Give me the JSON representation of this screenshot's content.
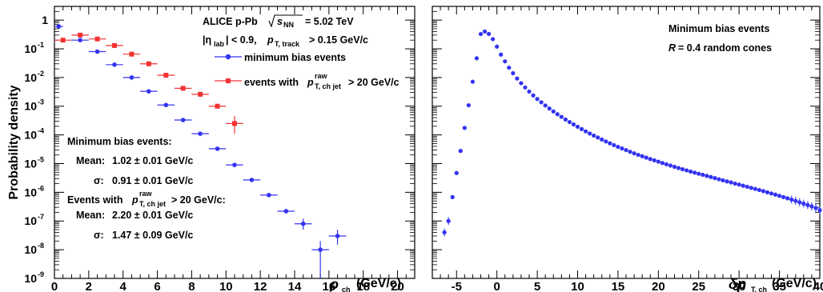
{
  "colors": {
    "red": "#f23333",
    "blue": "#3333f2",
    "frame": "#000000"
  },
  "left_panel": {
    "ylabel": "Probability density",
    "xlabel_sym": "ρ",
    "xlabel_sub": "ch",
    "xlabel_unit": "(GeV/c)",
    "title_line1_a": "ALICE p-Pb",
    "title_line1_sqrt": "s",
    "title_line1_sub": "NN",
    "title_line1_b": "= 5.02 TeV",
    "title_line2_a": "|η",
    "title_line2_sub1": "lab",
    "title_line2_b": "| < 0.9,",
    "title_line2_p": "p",
    "title_line2_sub2": "T, track",
    "title_line2_c": "> 0.15 GeV/c",
    "legend_blue": "minimum bias events",
    "legend_red_a": "events with",
    "legend_red_p": "p",
    "legend_red_sup": "raw",
    "legend_red_sub": "T, ch jet",
    "legend_red_b": "> 20 GeV/c",
    "mb_header": "Minimum bias events:",
    "mb_mean_label": "Mean:",
    "mb_mean_value": "1.02 ± 0.01 GeV/c",
    "mb_sigma_label": "σ:",
    "mb_sigma_value": "0.91 ± 0.01 GeV/c",
    "ev_header_a": "Events with",
    "ev_header_p": "p",
    "ev_header_sup": "raw",
    "ev_header_sub": "T, ch jet",
    "ev_header_b": "> 20 GeV/c:",
    "ev_mean_label": "Mean:",
    "ev_mean_value": "2.20 ± 0.01 GeV/c",
    "ev_sigma_label": "σ:",
    "ev_sigma_value": "1.47 ± 0.09 GeV/c"
  },
  "right_panel": {
    "xlabel_sym": "δp",
    "xlabel_sub": "T, ch",
    "xlabel_unit": "(GeV/c)",
    "legend_line1": "Minimum bias events",
    "legend_line2_a": "R",
    "legend_line2_b": "= 0.4 random cones"
  },
  "chart_data": [
    {
      "type": "scatter",
      "log_y": true,
      "xlim": [
        0,
        21
      ],
      "ylim": [
        1e-09,
        3
      ],
      "xticks": [
        "0",
        "2",
        "4",
        "6",
        "8",
        "10",
        "12",
        "14",
        "16",
        "18",
        "20"
      ],
      "yticks": [
        "10⁻⁹",
        "10⁻⁸",
        "10⁻⁷",
        "10⁻⁶",
        "10⁻⁵",
        "10⁻⁴",
        "10⁻³",
        "10⁻²",
        "10⁻¹",
        "1"
      ],
      "series": [
        {
          "name": "minimum bias events",
          "color": "#3333f2",
          "points": [
            {
              "x": 0.25,
              "y": 0.6,
              "xerr": 0.25
            },
            {
              "x": 1.5,
              "y": 0.2,
              "xerr": 0.5
            },
            {
              "x": 2.5,
              "y": 0.08,
              "xerr": 0.5
            },
            {
              "x": 3.5,
              "y": 0.028,
              "xerr": 0.5
            },
            {
              "x": 4.5,
              "y": 0.01,
              "xerr": 0.5
            },
            {
              "x": 5.5,
              "y": 0.0033,
              "xerr": 0.5
            },
            {
              "x": 6.5,
              "y": 0.0011,
              "xerr": 0.5
            },
            {
              "x": 7.5,
              "y": 0.00033,
              "xerr": 0.5
            },
            {
              "x": 8.5,
              "y": 0.00011,
              "xerr": 0.5
            },
            {
              "x": 9.5,
              "y": 3.3e-05,
              "xerr": 0.5
            },
            {
              "x": 10.5,
              "y": 9e-06,
              "xerr": 0.5
            },
            {
              "x": 11.5,
              "y": 2.7e-06,
              "xerr": 0.5
            },
            {
              "x": 12.5,
              "y": 8e-07,
              "xerr": 0.5
            },
            {
              "x": 13.5,
              "y": 2.2e-07,
              "xerr": 0.5
            },
            {
              "x": 14.5,
              "y": 8e-08,
              "xerr": 0.5,
              "ylo": 5e-08,
              "yhi": 1.2e-07
            },
            {
              "x": 15.5,
              "y": 1e-08,
              "xerr": 0.5,
              "ylo": 1e-09,
              "yhi": 2e-08
            },
            {
              "x": 16.5,
              "y": 3e-08,
              "xerr": 0.5,
              "ylo": 1.5e-08,
              "yhi": 5e-08
            }
          ]
        },
        {
          "name": "events with p_T,ch jet raw > 20 GeV/c",
          "color": "#f23333",
          "points": [
            {
              "x": 0.5,
              "y": 0.2,
              "xerr": 0.5
            },
            {
              "x": 1.5,
              "y": 0.3,
              "xerr": 0.5
            },
            {
              "x": 2.5,
              "y": 0.22,
              "xerr": 0.5
            },
            {
              "x": 3.5,
              "y": 0.13,
              "xerr": 0.5
            },
            {
              "x": 4.5,
              "y": 0.065,
              "xerr": 0.5
            },
            {
              "x": 5.5,
              "y": 0.03,
              "xerr": 0.5
            },
            {
              "x": 6.5,
              "y": 0.012,
              "xerr": 0.5
            },
            {
              "x": 7.5,
              "y": 0.0042,
              "xerr": 0.5
            },
            {
              "x": 8.5,
              "y": 0.0026,
              "xerr": 0.5
            },
            {
              "x": 9.5,
              "y": 0.001,
              "xerr": 0.5
            },
            {
              "x": 10.5,
              "y": 0.00025,
              "xerr": 0.5,
              "ylo": 0.00011,
              "yhi": 0.00045
            }
          ]
        }
      ]
    },
    {
      "type": "scatter",
      "log_y": true,
      "xlim": [
        -8,
        40
      ],
      "ylim": [
        1e-09,
        3
      ],
      "xticks": [
        "-5",
        "0",
        "5",
        "10",
        "15",
        "20",
        "25",
        "30",
        "35",
        "40"
      ],
      "series": [
        {
          "name": "Minimum bias events, R = 0.4 random cones",
          "color": "#3333f2",
          "xerr": 0.25,
          "x": [
            -6.5,
            -6.0,
            -5.5,
            -5.0,
            -4.5,
            -4.0,
            -3.5,
            -3.0,
            -2.5,
            -2.0,
            -1.5,
            -1.0,
            -0.5,
            0.0,
            0.5,
            1.0,
            1.5,
            2.0,
            2.5,
            3.0,
            3.5,
            4.0,
            4.5,
            5.0,
            5.5,
            6.0,
            6.5,
            7.0,
            7.5,
            8.0,
            8.5,
            9.0,
            9.5,
            10.0,
            10.5,
            11.0,
            11.5,
            12.0,
            12.5,
            13.0,
            13.5,
            14.0,
            14.5,
            15.0,
            15.5,
            16.0,
            16.5,
            17.0,
            17.5,
            18.0,
            18.5,
            19.0,
            19.5,
            20.0,
            20.5,
            21.0,
            21.5,
            22.0,
            22.5,
            23.0,
            23.5,
            24.0,
            24.5,
            25.0,
            25.5,
            26.0,
            26.5,
            27.0,
            27.5,
            28.0,
            28.5,
            29.0,
            29.5,
            30.0,
            30.5,
            31.0,
            31.5,
            32.0,
            32.5,
            33.0,
            33.5,
            34.0,
            34.5,
            35.0,
            35.5,
            36.0,
            36.5,
            37.0,
            37.5,
            38.0,
            38.5,
            39.0,
            39.5,
            40.0
          ],
          "y": [
            4e-08,
            1e-07,
            6.8e-07,
            4.7e-06,
            2.77e-05,
            0.000175,
            0.00108,
            0.00712,
            0.0469,
            0.326,
            0.4,
            0.33,
            0.217,
            0.119,
            0.0627,
            0.0365,
            0.022,
            0.0141,
            0.00923,
            0.00634,
            0.0045,
            0.00324,
            0.00238,
            0.00178,
            0.00137,
            0.00106,
            0.000832,
            0.000658,
            0.000525,
            0.000426,
            0.000344,
            0.00028,
            0.000232,
            0.000192,
            0.000159,
            0.000133,
            0.000112,
            9.5e-05,
            8.1e-05,
            6.9e-05,
            5.92e-05,
            5.1e-05,
            4.4e-05,
            3.83e-05,
            3.37e-05,
            2.96e-05,
            2.59e-05,
            2.28e-05,
            2.02e-05,
            1.81e-05,
            1.62e-05,
            1.44e-05,
            1.3e-05,
            1.17e-05,
            1.05e-05,
            9.47e-06,
            8.56e-06,
            7.73e-06,
            7.02e-06,
            6.38e-06,
            5.81e-06,
            5.28e-06,
            4.84e-06,
            4.43e-06,
            4.07e-06,
            3.73e-06,
            3.41e-06,
            3.12e-06,
            2.85e-06,
            2.62e-06,
            2.4e-06,
            2.21e-06,
            2.02e-06,
            1.86e-06,
            1.7e-06,
            1.56e-06,
            1.43e-06,
            1.31e-06,
            1.2e-06,
            1.1e-06,
            9.99e-07,
            9.11e-07,
            8.31e-07,
            7.53e-07,
            6.8e-07,
            6.18e-07,
            5.57e-07,
            5.04e-07,
            4.49e-07,
            4.02e-07,
            3.59e-07,
            3.22e-07,
            2.82e-07,
            2.38e-07
          ]
        }
      ]
    }
  ]
}
